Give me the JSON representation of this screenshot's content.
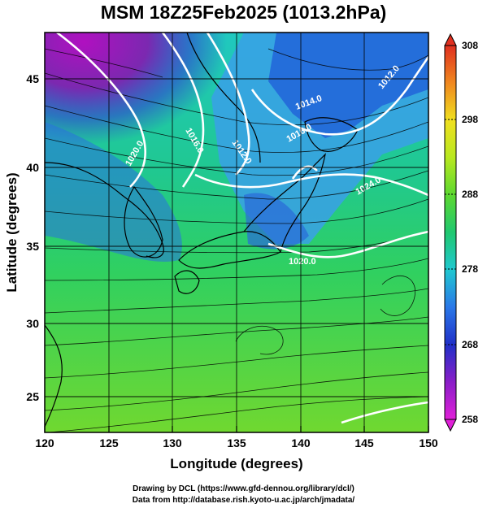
{
  "title": "MSM 18Z25Feb2025 (1013.2hPa)",
  "axes": {
    "xlabel": "Longitude (degrees)",
    "ylabel": "Latitude  (degrees)",
    "xticks": [
      "120",
      "125",
      "130",
      "135",
      "140",
      "145",
      "150"
    ],
    "yticks": [
      "25",
      "30",
      "35",
      "40",
      "45"
    ],
    "xlim": [
      120,
      150
    ],
    "ylim": [
      22.4,
      47.6
    ]
  },
  "colorbar": {
    "ticks": [
      "258",
      "268",
      "278",
      "288",
      "298",
      "308"
    ],
    "min": 258,
    "max": 308
  },
  "isobar_labels": [
    "1020.0",
    "1016.0",
    "1012.0",
    "1016.0",
    "1014.0",
    "1020.0",
    "1024.0",
    "1012.0"
  ],
  "credits": {
    "line1": "Drawing by DCL (https://www.gfd-dennou.org/library/dcl/)",
    "line2": "Data from http://database.rish.kyoto-u.ac.jp/arch/jmadata/"
  }
}
